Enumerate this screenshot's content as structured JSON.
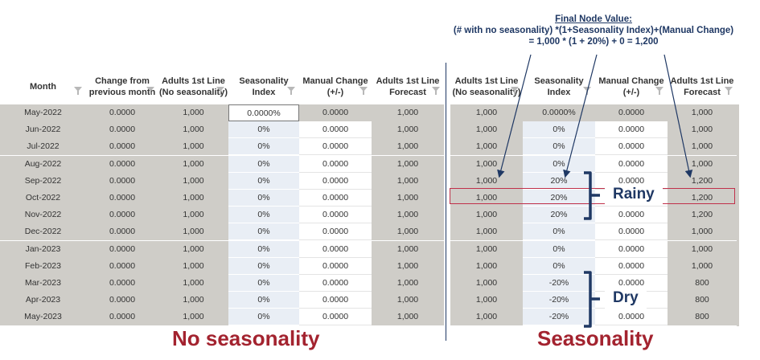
{
  "left_table": {
    "headers": [
      {
        "line1": "Month",
        "line2": ""
      },
      {
        "line1": "Change from",
        "line2": "previous month"
      },
      {
        "line1": "Adults 1st Line",
        "line2": "(No seasonality)"
      },
      {
        "line1": "Seasonality",
        "line2": "Index"
      },
      {
        "line1": "Manual Change",
        "line2": "(+/-)"
      },
      {
        "line1": "Adults 1st Line",
        "line2": "Forecast"
      }
    ],
    "rows": [
      [
        "May-2022",
        "0.0000",
        "1,000",
        "0.0000%",
        "0.0000",
        "1,000"
      ],
      [
        "Jun-2022",
        "0.0000",
        "1,000",
        "0%",
        "0.0000",
        "1,000"
      ],
      [
        "Jul-2022",
        "0.0000",
        "1,000",
        "0%",
        "0.0000",
        "1,000"
      ],
      [
        "Aug-2022",
        "0.0000",
        "1,000",
        "0%",
        "0.0000",
        "1,000"
      ],
      [
        "Sep-2022",
        "0.0000",
        "1,000",
        "0%",
        "0.0000",
        "1,000"
      ],
      [
        "Oct-2022",
        "0.0000",
        "1,000",
        "0%",
        "0.0000",
        "1,000"
      ],
      [
        "Nov-2022",
        "0.0000",
        "1,000",
        "0%",
        "0.0000",
        "1,000"
      ],
      [
        "Dec-2022",
        "0.0000",
        "1,000",
        "0%",
        "0.0000",
        "1,000"
      ],
      [
        "Jan-2023",
        "0.0000",
        "1,000",
        "0%",
        "0.0000",
        "1,000"
      ],
      [
        "Feb-2023",
        "0.0000",
        "1,000",
        "0%",
        "0.0000",
        "1,000"
      ],
      [
        "Mar-2023",
        "0.0000",
        "1,000",
        "0%",
        "0.0000",
        "1,000"
      ],
      [
        "Apr-2023",
        "0.0000",
        "1,000",
        "0%",
        "0.0000",
        "1,000"
      ],
      [
        "May-2023",
        "0.0000",
        "1,000",
        "0%",
        "0.0000",
        "1,000"
      ]
    ]
  },
  "right_table": {
    "headers": [
      {
        "line1": "Adults 1st Line",
        "line2": "(No seasonality)"
      },
      {
        "line1": "Seasonality",
        "line2": "Index"
      },
      {
        "line1": "Manual Change",
        "line2": "(+/-)"
      },
      {
        "line1": "Adults 1st Line",
        "line2": "Forecast"
      }
    ],
    "rows": [
      [
        "1,000",
        "0.0000%",
        "0.0000",
        "1,000"
      ],
      [
        "1,000",
        "0%",
        "0.0000",
        "1,000"
      ],
      [
        "1,000",
        "0%",
        "0.0000",
        "1,000"
      ],
      [
        "1,000",
        "0%",
        "0.0000",
        "1,000"
      ],
      [
        "1,000",
        "20%",
        "0.0000",
        "1,200"
      ],
      [
        "1,000",
        "20%",
        "0.0000",
        "1,200"
      ],
      [
        "1,000",
        "20%",
        "0.0000",
        "1,200"
      ],
      [
        "1,000",
        "0%",
        "0.0000",
        "1,000"
      ],
      [
        "1,000",
        "0%",
        "0.0000",
        "1,000"
      ],
      [
        "1,000",
        "0%",
        "0.0000",
        "1,000"
      ],
      [
        "1,000",
        "-20%",
        "0.0000",
        "800"
      ],
      [
        "1,000",
        "-20%",
        "0.0000",
        "800"
      ],
      [
        "1,000",
        "-20%",
        "0.0000",
        "800"
      ]
    ]
  },
  "formula": {
    "title": "Final Node Value:",
    "line2": "(# with no seasonality) *(1+Seasonality Index)+(Manual Change)",
    "line3": "= 1,000 * (1 + 20%) + 0 = 1,200"
  },
  "labels": {
    "rainy": "Rainy",
    "dry": "Dry",
    "no_seasonality": "No seasonality",
    "seasonality": "Seasonality"
  },
  "colors": {
    "accent_red": "#a3232f",
    "navy": "#1f3864",
    "grey_cell": "#cfcdc8",
    "blue_cell": "#e9eef5"
  }
}
